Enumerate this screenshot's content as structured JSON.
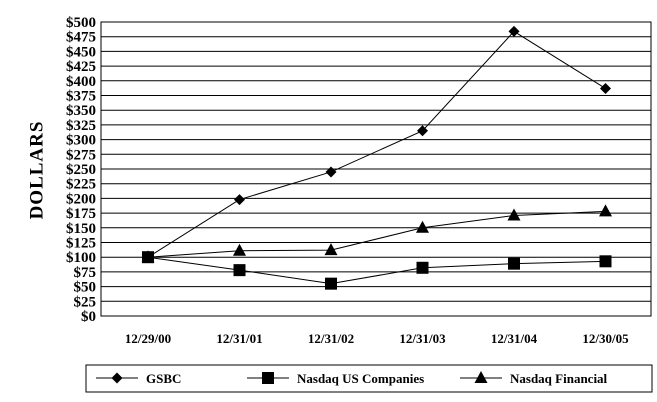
{
  "chart_data": {
    "type": "line",
    "title": "",
    "xlabel": "",
    "ylabel": "DOLLARS",
    "categories": [
      "12/29/00",
      "12/31/01",
      "12/31/02",
      "12/31/03",
      "12/31/04",
      "12/30/05"
    ],
    "ylim": [
      0,
      500
    ],
    "ytick_step": 25,
    "ytick_labels": [
      "$0",
      "$25",
      "$50",
      "$75",
      "$100",
      "$125",
      "$150",
      "$175",
      "$200",
      "$225",
      "$250",
      "$275",
      "$300",
      "$325",
      "$350",
      "$375",
      "$400",
      "$425",
      "$450",
      "$475",
      "$500"
    ],
    "grid": true,
    "legend_position": "bottom",
    "series": [
      {
        "name": "GSBC",
        "marker": "diamond",
        "values": [
          100,
          198,
          245,
          315,
          484,
          387
        ]
      },
      {
        "name": "Nasdaq US Companies",
        "marker": "square",
        "values": [
          100,
          78,
          55,
          82,
          89,
          93
        ]
      },
      {
        "name": "Nasdaq Financial",
        "marker": "triangle",
        "values": [
          100,
          111,
          112,
          150,
          171,
          178
        ]
      }
    ]
  }
}
